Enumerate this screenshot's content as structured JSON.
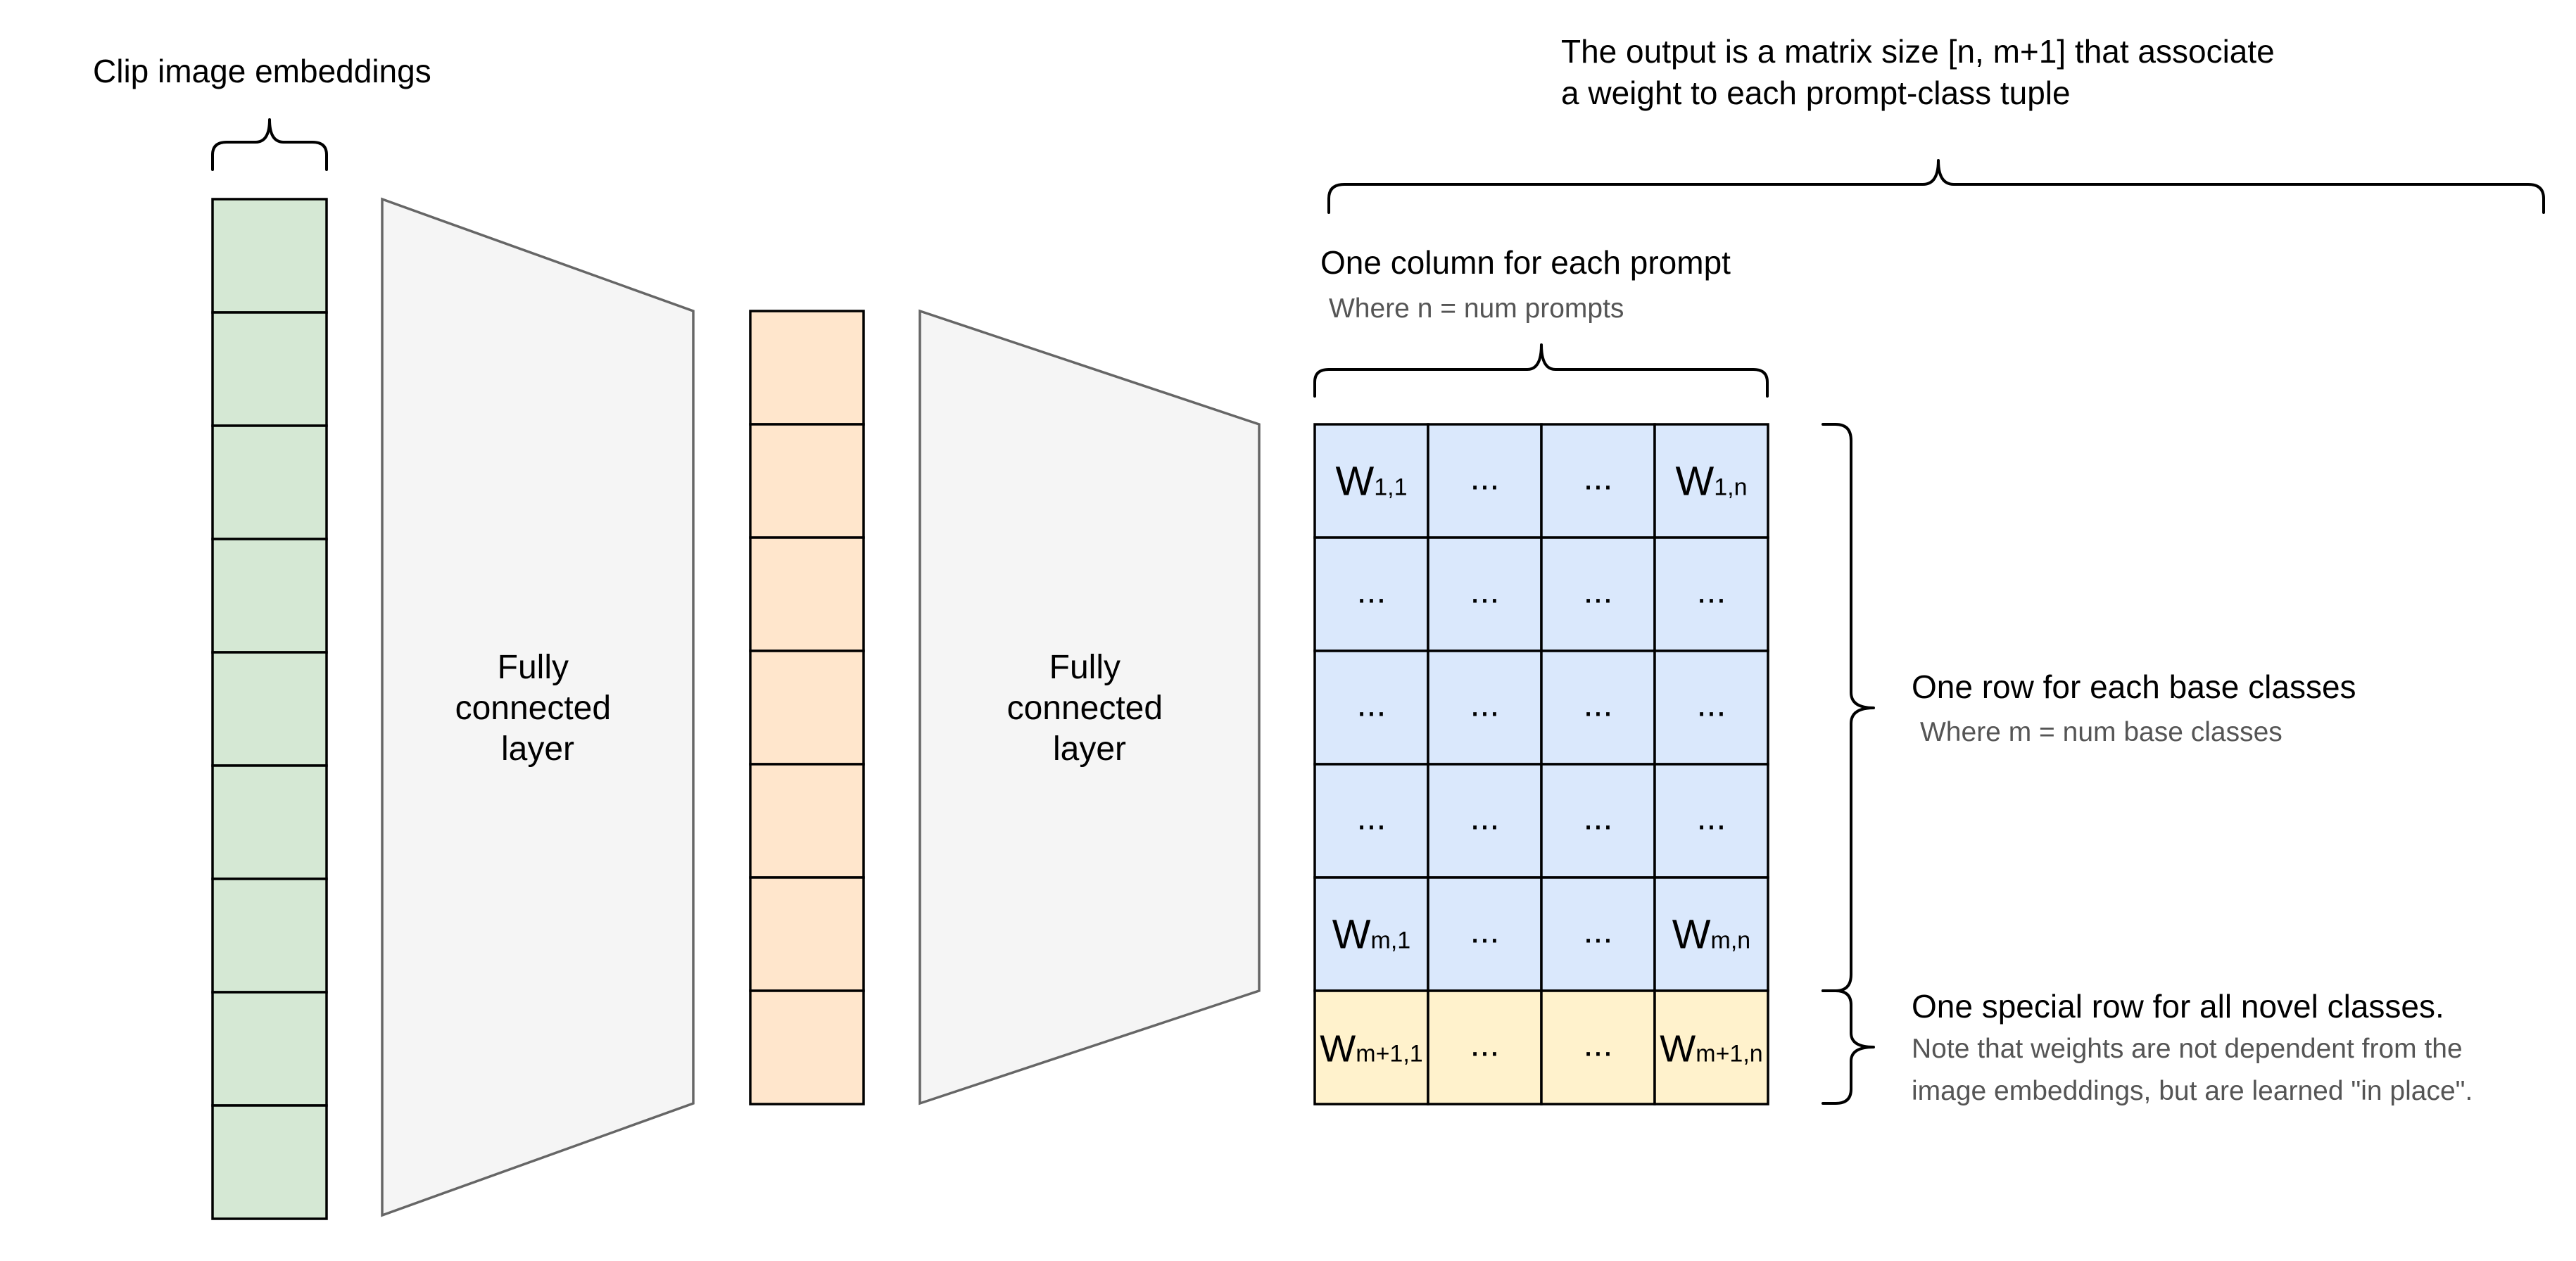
{
  "labels": {
    "clip_embeddings": "Clip image embeddings",
    "fc_layer_1": [
      "Fully",
      "connected",
      "layer"
    ],
    "fc_layer_2": [
      "Fully",
      "connected",
      "layer"
    ],
    "output_desc": [
      "The output is a matrix size [n, m+1] that associate",
      "a weight to each prompt-class tuple"
    ],
    "column_title": "One column for each prompt",
    "column_sub": "Where n = num prompts",
    "row_title": "One row for each base classes",
    "row_sub": "Where m = num base classes",
    "special_title": "One special row for all novel classes.",
    "special_sub": [
      "Note that weights are not dependent from the",
      "image embeddings, but are learned \"in place\"."
    ]
  },
  "colors": {
    "green_vector": "#d5e8d4",
    "orange_vector": "#ffe6cc",
    "matrix_blue": "#dae8fc",
    "matrix_yellow": "#fff2cc",
    "fc_layer_fill": "#f5f5f5",
    "fc_layer_stroke": "#666666"
  },
  "input_vector": {
    "cells": 9
  },
  "hidden_vector": {
    "cells": 7
  },
  "matrix": {
    "rows": [
      [
        {
          "w": "W",
          "sub": "1,1"
        },
        {
          "t": "..."
        },
        {
          "t": "..."
        },
        {
          "w": "W",
          "sub": "1,n"
        }
      ],
      [
        {
          "t": "..."
        },
        {
          "t": "..."
        },
        {
          "t": "..."
        },
        {
          "t": "..."
        }
      ],
      [
        {
          "t": "..."
        },
        {
          "t": "..."
        },
        {
          "t": "..."
        },
        {
          "t": "..."
        }
      ],
      [
        {
          "t": "..."
        },
        {
          "t": "..."
        },
        {
          "t": "..."
        },
        {
          "t": "..."
        }
      ],
      [
        {
          "w": "W",
          "sub": "m,1"
        },
        {
          "t": "..."
        },
        {
          "t": "..."
        },
        {
          "w": "W",
          "sub": "m,n"
        }
      ],
      [
        {
          "w": "W",
          "sub": "m+1,1"
        },
        {
          "t": "..."
        },
        {
          "t": "..."
        },
        {
          "w": "W",
          "sub": "m+1,n"
        }
      ]
    ],
    "special_row_index": 5
  }
}
